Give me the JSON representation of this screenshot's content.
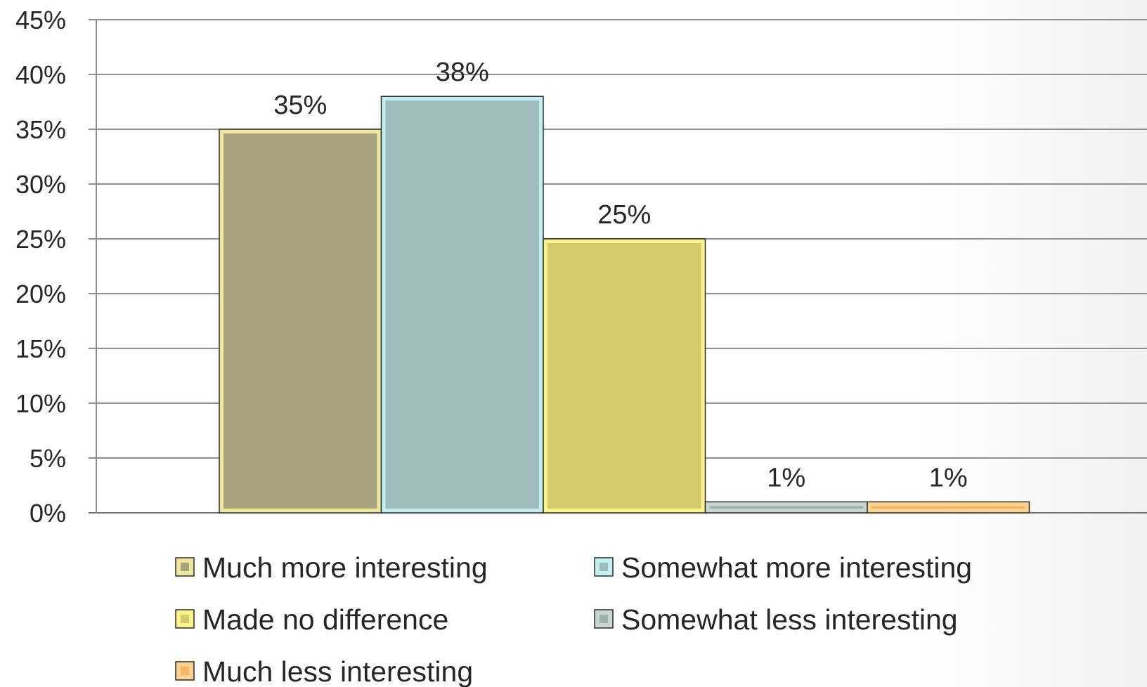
{
  "chart_data": {
    "type": "bar",
    "title": "",
    "xlabel": "",
    "ylabel": "",
    "categories": [
      "Much more interesting",
      "Somewhat more interesting",
      "Made no difference",
      "Somewhat less interesting",
      "Much less interesting"
    ],
    "values": [
      35,
      38,
      25,
      1,
      1
    ],
    "value_labels": [
      "35%",
      "38%",
      "25%",
      "1%",
      "1%"
    ],
    "ylim": [
      0,
      45
    ],
    "y_tick_step": 5,
    "y_tick_labels": [
      "0%",
      "5%",
      "10%",
      "15%",
      "20%",
      "25%",
      "30%",
      "35%",
      "40%",
      "45%"
    ],
    "grid": true,
    "legend_position": "bottom",
    "colors": {
      "fills": [
        "#a8a37c",
        "#9dbcbb",
        "#d3cb6d",
        "#9fb1ad",
        "#f2b766"
      ],
      "borders": [
        "#eee89e",
        "#c2eff0",
        "#faf48a",
        "#c7d6d3",
        "#fbd28e"
      ]
    }
  }
}
